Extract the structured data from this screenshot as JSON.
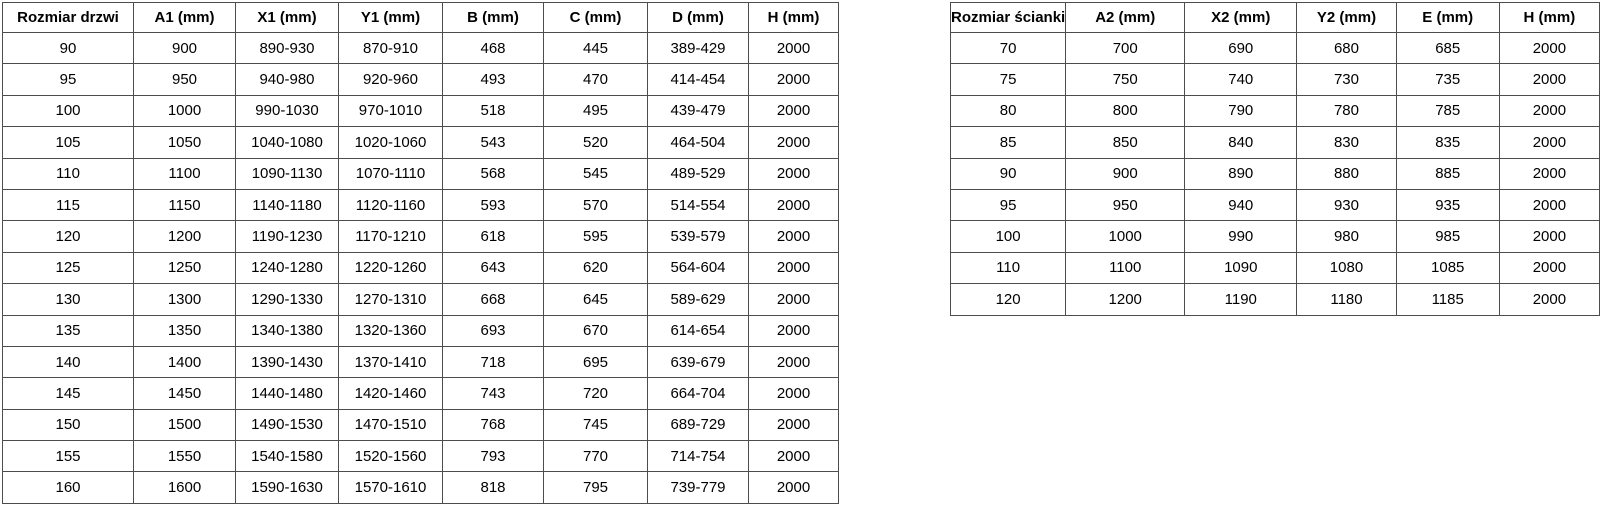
{
  "door_table": {
    "headers": [
      "Rozmiar drzwi",
      "A1 (mm)",
      "X1 (mm)",
      "Y1 (mm)",
      "B (mm)",
      "C (mm)",
      "D (mm)",
      "H (mm)"
    ],
    "rows": [
      [
        "90",
        "900",
        "890-930",
        "870-910",
        "468",
        "445",
        "389-429",
        "2000"
      ],
      [
        "95",
        "950",
        "940-980",
        "920-960",
        "493",
        "470",
        "414-454",
        "2000"
      ],
      [
        "100",
        "1000",
        "990-1030",
        "970-1010",
        "518",
        "495",
        "439-479",
        "2000"
      ],
      [
        "105",
        "1050",
        "1040-1080",
        "1020-1060",
        "543",
        "520",
        "464-504",
        "2000"
      ],
      [
        "110",
        "1100",
        "1090-1130",
        "1070-1110",
        "568",
        "545",
        "489-529",
        "2000"
      ],
      [
        "115",
        "1150",
        "1140-1180",
        "1120-1160",
        "593",
        "570",
        "514-554",
        "2000"
      ],
      [
        "120",
        "1200",
        "1190-1230",
        "1170-1210",
        "618",
        "595",
        "539-579",
        "2000"
      ],
      [
        "125",
        "1250",
        "1240-1280",
        "1220-1260",
        "643",
        "620",
        "564-604",
        "2000"
      ],
      [
        "130",
        "1300",
        "1290-1330",
        "1270-1310",
        "668",
        "645",
        "589-629",
        "2000"
      ],
      [
        "135",
        "1350",
        "1340-1380",
        "1320-1360",
        "693",
        "670",
        "614-654",
        "2000"
      ],
      [
        "140",
        "1400",
        "1390-1430",
        "1370-1410",
        "718",
        "695",
        "639-679",
        "2000"
      ],
      [
        "145",
        "1450",
        "1440-1480",
        "1420-1460",
        "743",
        "720",
        "664-704",
        "2000"
      ],
      [
        "150",
        "1500",
        "1490-1530",
        "1470-1510",
        "768",
        "745",
        "689-729",
        "2000"
      ],
      [
        "155",
        "1550",
        "1540-1580",
        "1520-1560",
        "793",
        "770",
        "714-754",
        "2000"
      ],
      [
        "160",
        "1600",
        "1590-1630",
        "1570-1610",
        "818",
        "795",
        "739-779",
        "2000"
      ]
    ]
  },
  "wall_table": {
    "headers": [
      "Rozmiar ścianki",
      "A2 (mm)",
      "X2 (mm)",
      "Y2 (mm)",
      "E (mm)",
      "H (mm)"
    ],
    "rows": [
      [
        "70",
        "700",
        "690",
        "680",
        "685",
        "2000"
      ],
      [
        "75",
        "750",
        "740",
        "730",
        "735",
        "2000"
      ],
      [
        "80",
        "800",
        "790",
        "780",
        "785",
        "2000"
      ],
      [
        "85",
        "850",
        "840",
        "830",
        "835",
        "2000"
      ],
      [
        "90",
        "900",
        "890",
        "880",
        "885",
        "2000"
      ],
      [
        "95",
        "950",
        "940",
        "930",
        "935",
        "2000"
      ],
      [
        "100",
        "1000",
        "990",
        "980",
        "985",
        "2000"
      ],
      [
        "110",
        "1100",
        "1090",
        "1080",
        "1085",
        "2000"
      ],
      [
        "120",
        "1200",
        "1190",
        "1180",
        "1185",
        "2000"
      ]
    ]
  },
  "colors": {
    "border": "#4d4d4d",
    "text": "#000000",
    "background": "#ffffff"
  }
}
